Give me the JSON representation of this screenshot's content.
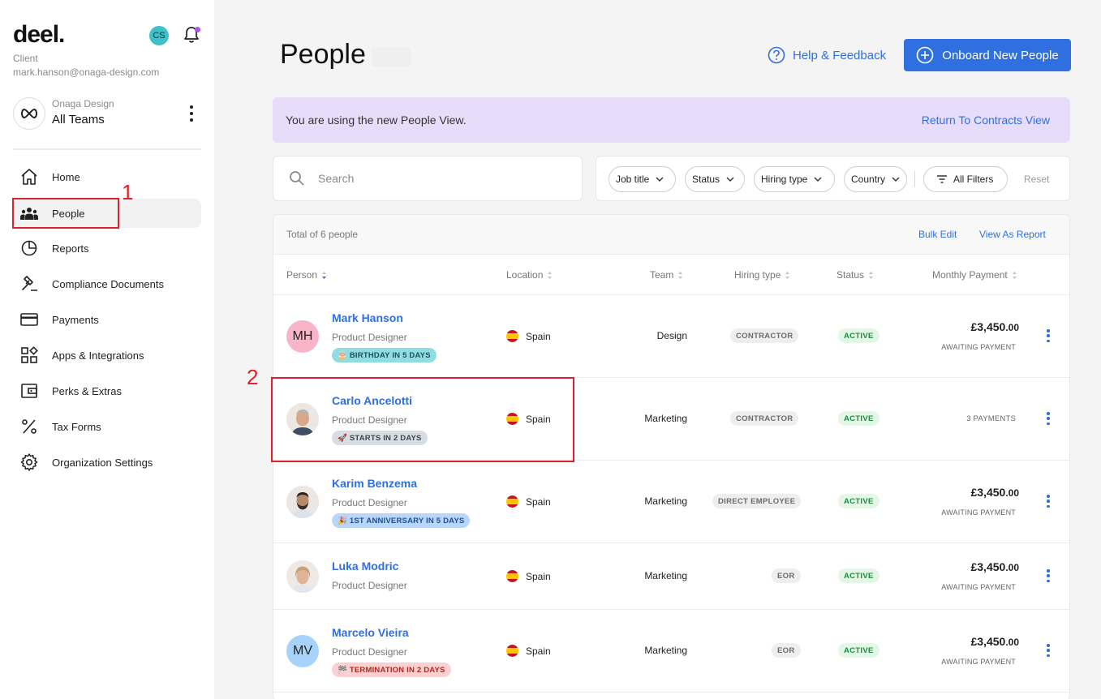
{
  "sidebar": {
    "logo": "deel.",
    "user_initials": "CS",
    "client_role": "Client",
    "client_email": "mark.hanson@onaga-design.com",
    "org_sub": "Onaga Design",
    "org_name": "All Teams",
    "items": [
      {
        "label": "Home",
        "icon": "home-icon"
      },
      {
        "label": "People",
        "icon": "people-icon",
        "active": true
      },
      {
        "label": "Reports",
        "icon": "pie-chart-icon"
      },
      {
        "label": "Compliance Documents",
        "icon": "gavel-icon"
      },
      {
        "label": "Payments",
        "icon": "credit-card-icon"
      },
      {
        "label": "Apps & Integrations",
        "icon": "apps-icon"
      },
      {
        "label": "Perks & Extras",
        "icon": "wallet-icon"
      },
      {
        "label": "Tax Forms",
        "icon": "percent-icon"
      },
      {
        "label": "Organization Settings",
        "icon": "gear-icon"
      }
    ]
  },
  "annotations": [
    "1",
    "2"
  ],
  "header": {
    "title": "People",
    "help_label": "Help & Feedback",
    "onboard_label": "Onboard New People"
  },
  "banner": {
    "text": "You are using the new People View.",
    "link": "Return To Contracts View"
  },
  "search": {
    "placeholder": "Search"
  },
  "filters": {
    "chips": [
      "Job title",
      "Status",
      "Hiring type",
      "Country"
    ],
    "all_filters": "All Filters",
    "reset": "Reset"
  },
  "table": {
    "total": "Total of 6 people",
    "bulk_edit": "Bulk Edit",
    "view_report": "View As Report",
    "columns": [
      "Person",
      "Location",
      "Team",
      "Hiring type",
      "Status",
      "Monthly Payment"
    ],
    "rows": [
      {
        "initials": "MH",
        "avatar_color": "#f8b4c8",
        "name": "Mark Hanson",
        "role": "Product Designer",
        "tag": "🎂 BIRTHDAY IN 5 DAYS",
        "tag_bg": "#8fdde3",
        "tag_fg": "#1d5157",
        "location": "Spain",
        "team": "Design",
        "hiring": "CONTRACTOR",
        "status": "ACTIVE",
        "amount": "£3,450",
        "amount_dec": ".00",
        "pay_status": "AWAITING PAYMENT"
      },
      {
        "initials": "",
        "avatar_color": "#e9e3de",
        "name": "Carlo Ancelotti",
        "role": "Product Designer",
        "tag": "🚀 STARTS IN 2 DAYS",
        "tag_bg": "#d7dde3",
        "tag_fg": "#3a4550",
        "location": "Spain",
        "team": "Marketing",
        "hiring": "CONTRACTOR",
        "status": "ACTIVE",
        "payments": "3 PAYMENTS"
      },
      {
        "initials": "",
        "avatar_color": "#e6e2df",
        "name": "Karim Benzema",
        "role": "Product Designer",
        "tag": "🎉 1ST ANNIVERSARY IN 5 DAYS",
        "tag_bg": "#b8d6fb",
        "tag_fg": "#1d4f91",
        "location": "Spain",
        "team": "Marketing",
        "hiring": "DIRECT EMPLOYEE",
        "status": "ACTIVE",
        "amount": "£3,450",
        "amount_dec": ".00",
        "pay_status": "AWAITING PAYMENT"
      },
      {
        "initials": "",
        "avatar_color": "#ebe5df",
        "name": "Luka Modric",
        "role": "Product Designer",
        "location": "Spain",
        "team": "Marketing",
        "hiring": "EOR",
        "status": "ACTIVE",
        "amount": "£3,450",
        "amount_dec": ".00",
        "pay_status": "AWAITING PAYMENT"
      },
      {
        "initials": "MV",
        "avatar_color": "#a6d2fb",
        "name": "Marcelo Vieira",
        "role": "Product Designer",
        "tag": "🏁 TERMINATION IN 2 DAYS",
        "tag_bg": "#fbd0d0",
        "tag_fg": "#b3261e",
        "location": "Spain",
        "team": "Marketing",
        "hiring": "EOR",
        "status": "ACTIVE",
        "amount": "£3,450",
        "amount_dec": ".00",
        "pay_status": "AWAITING PAYMENT"
      }
    ]
  },
  "colors": {
    "accent": "#2f6fe0",
    "banner": "#e8dcfb",
    "annotation": "#d9232e"
  }
}
